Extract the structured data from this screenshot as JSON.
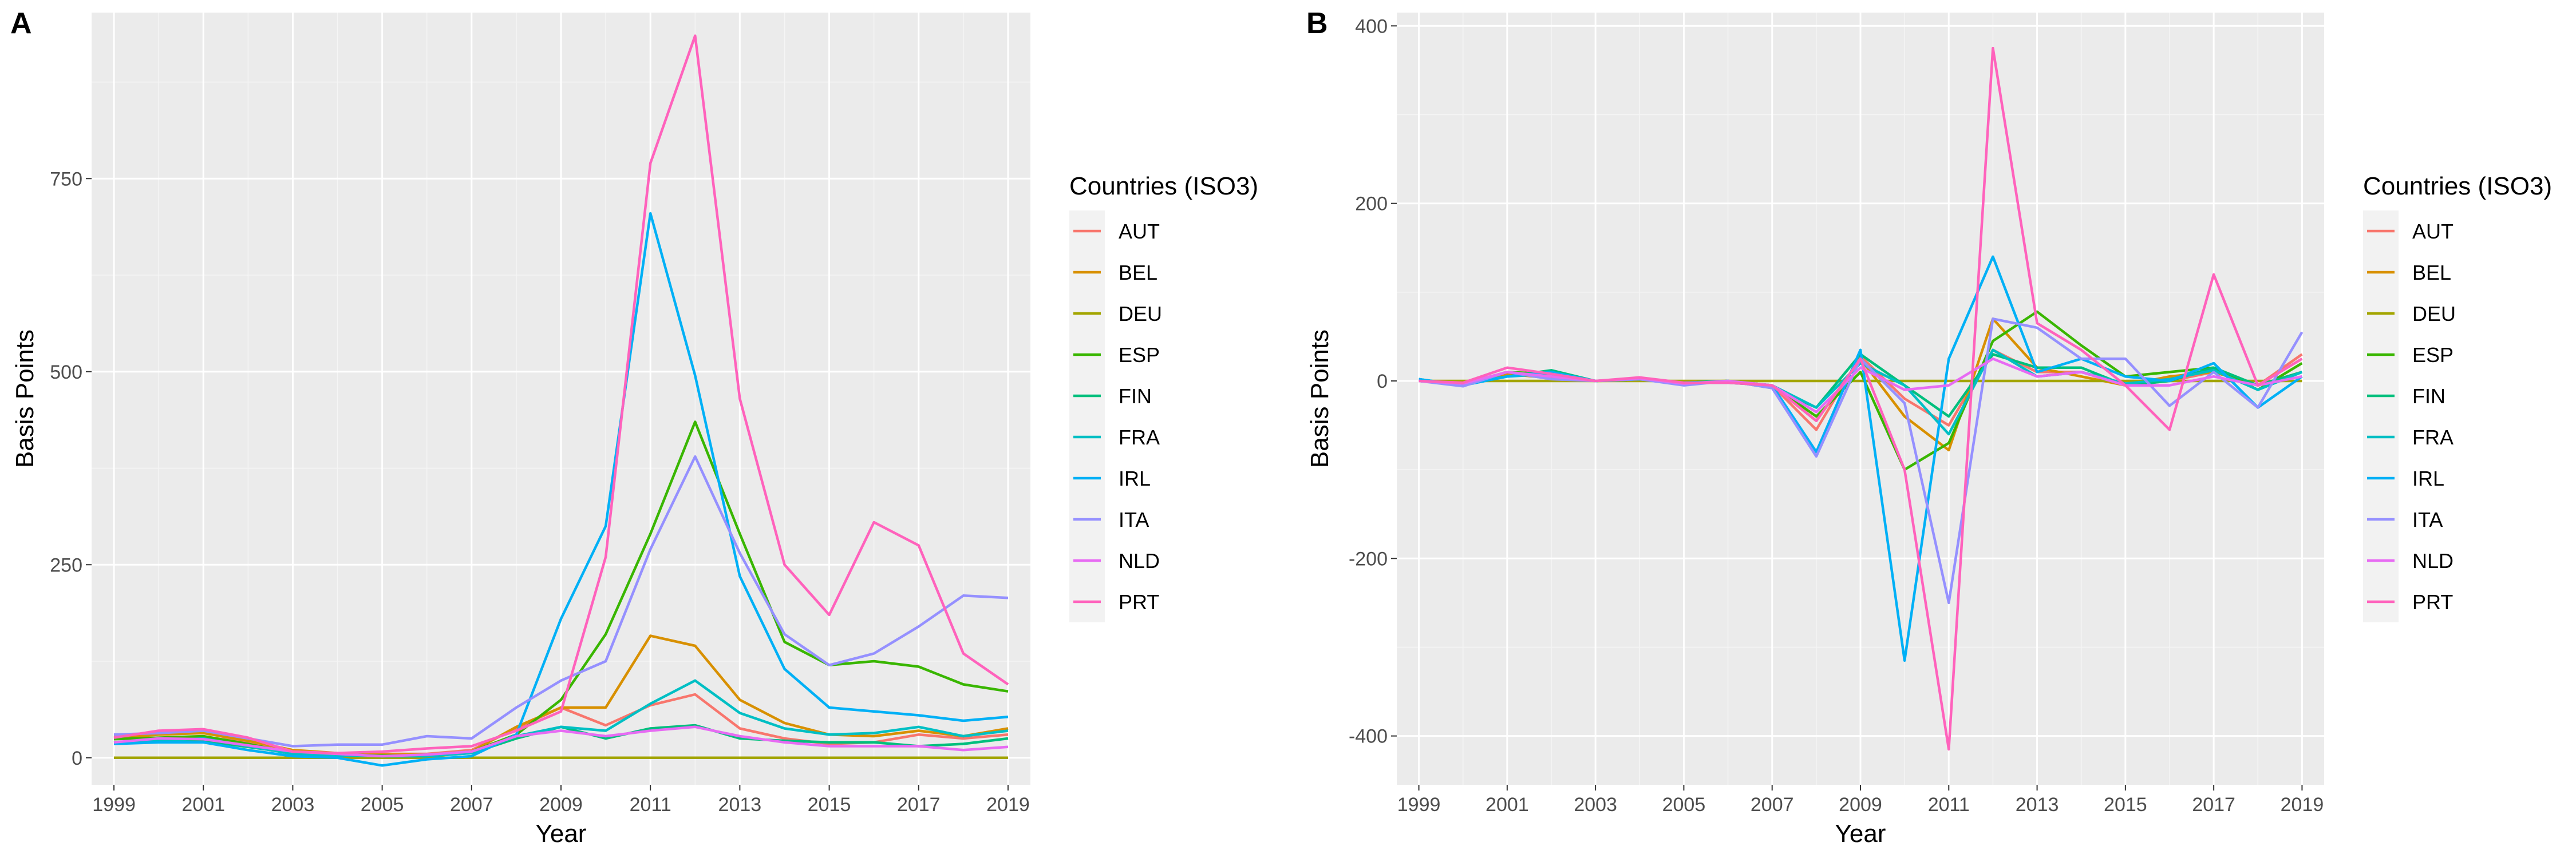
{
  "chart_data": [
    {
      "panel": "A",
      "type": "line",
      "xlabel": "Year",
      "ylabel": "Basis Points",
      "legend_title": "Countries (ISO3)",
      "legend_position": "right",
      "grid": true,
      "xlim": [
        1998.5,
        2019.5
      ],
      "ylim": [
        -35,
        965
      ],
      "x_ticks": [
        1999,
        2001,
        2003,
        2005,
        2007,
        2009,
        2011,
        2013,
        2015,
        2017,
        2019
      ],
      "y_ticks": [
        0,
        250,
        500,
        750
      ],
      "x": [
        1999,
        2000,
        2001,
        2002,
        2003,
        2004,
        2005,
        2006,
        2007,
        2008,
        2009,
        2010,
        2011,
        2012,
        2013,
        2014,
        2015,
        2016,
        2017,
        2018,
        2019
      ],
      "series": [
        {
          "name": "AUT",
          "color": "#F8766D",
          "values": [
            28,
            30,
            33,
            20,
            8,
            6,
            5,
            5,
            10,
            38,
            65,
            42,
            68,
            82,
            38,
            25,
            18,
            20,
            30,
            25,
            30
          ]
        },
        {
          "name": "BEL",
          "color": "#D89000",
          "values": [
            25,
            30,
            32,
            22,
            10,
            6,
            4,
            4,
            8,
            40,
            65,
            65,
            158,
            145,
            75,
            45,
            30,
            28,
            35,
            28,
            38
          ]
        },
        {
          "name": "DEU",
          "color": "#A3A500",
          "values": [
            0,
            0,
            0,
            0,
            0,
            0,
            0,
            0,
            0,
            0,
            0,
            0,
            0,
            0,
            0,
            0,
            0,
            0,
            0,
            0,
            0
          ]
        },
        {
          "name": "ESP",
          "color": "#39B600",
          "values": [
            24,
            26,
            28,
            18,
            6,
            4,
            3,
            3,
            8,
            30,
            75,
            160,
            290,
            435,
            290,
            150,
            120,
            125,
            118,
            95,
            86
          ]
        },
        {
          "name": "FIN",
          "color": "#00BF7D",
          "values": [
            20,
            22,
            22,
            14,
            6,
            4,
            2,
            2,
            6,
            25,
            40,
            25,
            38,
            42,
            25,
            22,
            20,
            20,
            15,
            18,
            25
          ]
        },
        {
          "name": "FRA",
          "color": "#00BFC4",
          "values": [
            20,
            22,
            25,
            15,
            5,
            3,
            2,
            2,
            6,
            28,
            40,
            35,
            70,
            100,
            58,
            38,
            30,
            32,
            40,
            28,
            35
          ]
        },
        {
          "name": "IRL",
          "color": "#00B0F6",
          "values": [
            18,
            20,
            20,
            10,
            2,
            0,
            -10,
            -2,
            2,
            30,
            180,
            300,
            705,
            495,
            235,
            115,
            65,
            60,
            55,
            48,
            53
          ]
        },
        {
          "name": "ITA",
          "color": "#9590FF",
          "values": [
            30,
            32,
            35,
            25,
            15,
            17,
            17,
            28,
            25,
            65,
            100,
            125,
            270,
            390,
            265,
            160,
            120,
            135,
            170,
            210,
            207
          ]
        },
        {
          "name": "NLD",
          "color": "#E76BF3",
          "values": [
            20,
            25,
            24,
            16,
            8,
            5,
            2,
            4,
            8,
            28,
            35,
            28,
            35,
            40,
            28,
            20,
            15,
            15,
            15,
            10,
            14
          ]
        },
        {
          "name": "PRT",
          "color": "#FF62BC",
          "values": [
            26,
            35,
            37,
            26,
            8,
            6,
            8,
            12,
            15,
            35,
            60,
            260,
            770,
            935,
            465,
            250,
            185,
            305,
            275,
            135,
            95
          ]
        }
      ]
    },
    {
      "panel": "B",
      "type": "line",
      "xlabel": "Year",
      "ylabel": "Basis Points",
      "legend_title": "Countries (ISO3)",
      "legend_position": "right",
      "grid": true,
      "xlim": [
        1998.5,
        2019.5
      ],
      "ylim": [
        -455,
        415
      ],
      "x_ticks": [
        1999,
        2001,
        2003,
        2005,
        2007,
        2009,
        2011,
        2013,
        2015,
        2017,
        2019
      ],
      "y_ticks": [
        -400,
        -200,
        0,
        200,
        400
      ],
      "x": [
        1999,
        2000,
        2001,
        2002,
        2003,
        2004,
        2005,
        2006,
        2007,
        2008,
        2009,
        2010,
        2011,
        2012,
        2013,
        2014,
        2015,
        2016,
        2017,
        2018,
        2019
      ],
      "series": [
        {
          "name": "AUT",
          "color": "#F8766D",
          "values": [
            0,
            -3,
            10,
            5,
            0,
            2,
            -2,
            0,
            -5,
            -55,
            28,
            -20,
            -50,
            35,
            10,
            10,
            -5,
            0,
            10,
            -5,
            30
          ]
        },
        {
          "name": "BEL",
          "color": "#D89000",
          "values": [
            0,
            -4,
            8,
            3,
            0,
            1,
            -1,
            0,
            -5,
            -45,
            25,
            -40,
            -78,
            70,
            15,
            5,
            -5,
            5,
            10,
            -5,
            10
          ]
        },
        {
          "name": "DEU",
          "color": "#A3A500",
          "values": [
            0,
            0,
            0,
            0,
            0,
            0,
            0,
            0,
            0,
            0,
            0,
            0,
            0,
            0,
            0,
            0,
            0,
            0,
            0,
            0,
            0
          ]
        },
        {
          "name": "ESP",
          "color": "#39B600",
          "values": [
            0,
            -4,
            10,
            8,
            0,
            2,
            -2,
            -2,
            -5,
            -40,
            10,
            -100,
            -70,
            45,
            78,
            40,
            5,
            10,
            15,
            -10,
            20
          ]
        },
        {
          "name": "FIN",
          "color": "#00BF7D",
          "values": [
            2,
            -5,
            5,
            12,
            0,
            2,
            -2,
            0,
            -8,
            -30,
            30,
            -5,
            -40,
            30,
            15,
            15,
            -5,
            0,
            15,
            -5,
            10
          ]
        },
        {
          "name": "FRA",
          "color": "#00BFC4",
          "values": [
            0,
            -3,
            5,
            8,
            0,
            2,
            -2,
            0,
            -5,
            -30,
            20,
            -5,
            -60,
            35,
            5,
            10,
            -3,
            2,
            12,
            -10,
            10
          ]
        },
        {
          "name": "IRL",
          "color": "#00B0F6",
          "values": [
            2,
            -5,
            5,
            10,
            0,
            2,
            -2,
            -2,
            -5,
            -80,
            35,
            -315,
            25,
            140,
            10,
            25,
            5,
            0,
            20,
            -30,
            5
          ]
        },
        {
          "name": "ITA",
          "color": "#9590FF",
          "values": [
            0,
            -6,
            10,
            2,
            0,
            2,
            -5,
            0,
            -8,
            -85,
            25,
            -25,
            -250,
            70,
            60,
            25,
            25,
            -28,
            10,
            -30,
            55
          ]
        },
        {
          "name": "NLD",
          "color": "#E76BF3",
          "values": [
            0,
            -3,
            10,
            5,
            0,
            3,
            -3,
            0,
            -5,
            -35,
            15,
            -10,
            -5,
            25,
            5,
            10,
            -5,
            -5,
            5,
            -5,
            5
          ]
        },
        {
          "name": "PRT",
          "color": "#FF62BC",
          "values": [
            0,
            -2,
            15,
            8,
            0,
            4,
            -2,
            -2,
            -5,
            -45,
            25,
            -100,
            -415,
            375,
            65,
            35,
            -5,
            -55,
            120,
            -5,
            25
          ]
        }
      ]
    }
  ]
}
